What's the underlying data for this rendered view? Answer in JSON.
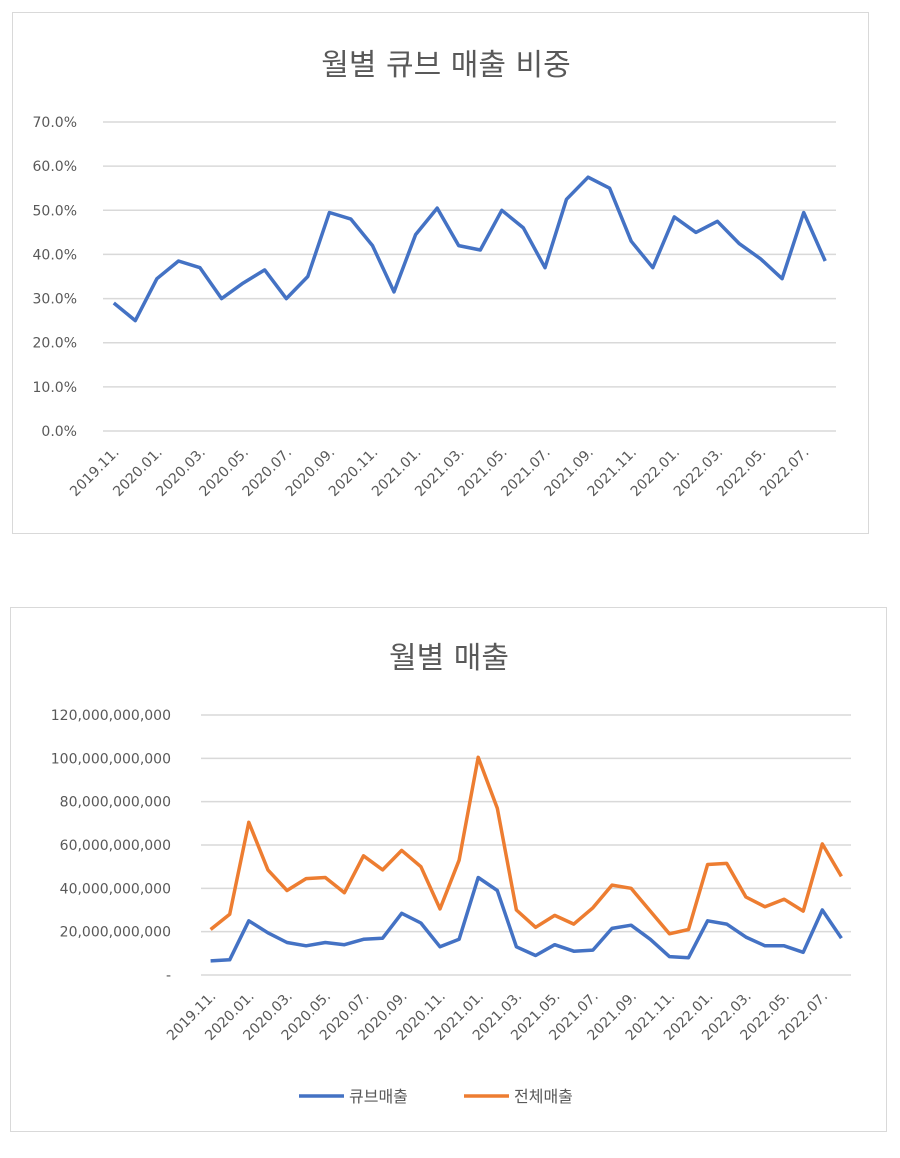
{
  "chart_data": [
    {
      "type": "line",
      "title": "월별 큐브 매출 비중",
      "x_tick_labels": [
        "2019.11.",
        "2020.01.",
        "2020.03.",
        "2020.05.",
        "2020.07.",
        "2020.09.",
        "2020.11.",
        "2021.01.",
        "2021.03.",
        "2021.05.",
        "2021.07.",
        "2021.09.",
        "2021.11.",
        "2022.01.",
        "2022.03.",
        "2022.05.",
        "2022.07."
      ],
      "y_tick_labels": [
        "0.0%",
        "10.0%",
        "20.0%",
        "30.0%",
        "40.0%",
        "50.0%",
        "60.0%",
        "70.0%"
      ],
      "ylim": [
        0,
        70
      ],
      "grid": true,
      "series": [
        {
          "color": "#4472c4",
          "values": [
            29,
            25,
            34.5,
            38.5,
            37,
            30,
            33.5,
            36.5,
            30,
            35,
            49.5,
            48,
            42,
            31.5,
            44.5,
            50.5,
            42,
            41,
            50,
            46,
            37,
            52.5,
            57.5,
            55,
            43,
            37,
            48.5,
            45,
            47.5,
            42.5,
            39,
            34.5,
            49.5,
            38.5
          ]
        }
      ]
    },
    {
      "type": "line",
      "title": "월별 매출",
      "x_tick_labels": [
        "2019.11.",
        "2020.01.",
        "2020.03.",
        "2020.05.",
        "2020.07.",
        "2020.09.",
        "2020.11.",
        "2021.01.",
        "2021.03.",
        "2021.05.",
        "2021.07.",
        "2021.09.",
        "2021.11.",
        "2022.01.",
        "2022.03.",
        "2022.05.",
        "2022.07."
      ],
      "y_tick_labels": [
        "-",
        "20,000,000,000",
        "40,000,000,000",
        "60,000,000,000",
        "80,000,000,000",
        "100,000,000,000",
        "120,000,000,000"
      ],
      "ylim": [
        0,
        120000000000
      ],
      "grid": true,
      "legend": "bottom",
      "series": [
        {
          "name": "큐브매출",
          "color": "#4472c4",
          "values": [
            6500000000,
            7000000000,
            25000000000,
            19500000000,
            15000000000,
            13500000000,
            15000000000,
            14000000000,
            16500000000,
            17000000000,
            28500000000,
            24000000000,
            13000000000,
            16500000000,
            45000000000,
            39000000000,
            13000000000,
            9000000000,
            14000000000,
            11000000000,
            11500000000,
            21500000000,
            23000000000,
            16500000000,
            8500000000,
            8000000000,
            25000000000,
            23500000000,
            17500000000,
            13500000000,
            13500000000,
            10500000000,
            30000000000,
            17000000000
          ]
        },
        {
          "name": "전체매출",
          "color": "#ed7d31",
          "values": [
            21000000000,
            28000000000,
            70500000000,
            48500000000,
            39000000000,
            44500000000,
            45000000000,
            38000000000,
            55000000000,
            48500000000,
            57500000000,
            50000000000,
            30500000000,
            53000000000,
            100500000000,
            77000000000,
            30000000000,
            22000000000,
            27500000000,
            23500000000,
            31000000000,
            41500000000,
            40000000000,
            29500000000,
            19000000000,
            21000000000,
            51000000000,
            51500000000,
            36000000000,
            31500000000,
            35000000000,
            29500000000,
            60500000000,
            45500000000
          ]
        }
      ]
    }
  ]
}
